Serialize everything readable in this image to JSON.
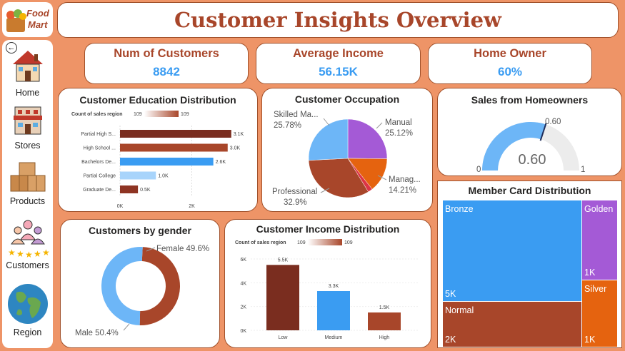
{
  "app": {
    "logo_line1": "Food",
    "logo_line2": "Mart",
    "title": "Customer Insights Overview"
  },
  "nav": {
    "back": "←",
    "items": [
      {
        "label": "Home",
        "icon": "home-icon"
      },
      {
        "label": "Stores",
        "icon": "store-icon"
      },
      {
        "label": "Products",
        "icon": "box-icon"
      },
      {
        "label": "Customers",
        "icon": "customers-icon"
      },
      {
        "label": "Region",
        "icon": "globe-icon"
      }
    ]
  },
  "kpis": [
    {
      "title": "Num of Customers",
      "value": "8842"
    },
    {
      "title": "Average Income",
      "value": "56.15K"
    },
    {
      "title": "Home Owner",
      "value": "60%"
    }
  ],
  "colors": {
    "accent": "#a8462a",
    "blue": "#3a9cf2",
    "purple": "#a45ad6",
    "orange": "#e5630f",
    "red": "#dc3545",
    "darkbrown": "#7a2d1f"
  },
  "chart_data": [
    {
      "id": "education",
      "type": "bar",
      "orientation": "horizontal",
      "title": "Customer Education Distribution",
      "legend": {
        "label": "Count of sales region",
        "min": "109",
        "max": "109"
      },
      "categories": [
        "Partial High S...",
        "High School ...",
        "Bachelors De...",
        "Partial College",
        "Graduate De..."
      ],
      "values": [
        3100,
        3000,
        2600,
        1000,
        500
      ],
      "value_labels": [
        "3.1K",
        "3.0K",
        "2.6K",
        "1.0K",
        "0.5K"
      ],
      "colors": [
        "#7a2d1f",
        "#a8462a",
        "#3a9cf2",
        "#a8d4fb",
        "#8e3423"
      ],
      "xticks": [
        "0K",
        "2K"
      ],
      "xlim": [
        0,
        4000
      ]
    },
    {
      "id": "occupation",
      "type": "pie",
      "title": "Customer Occupation",
      "slices": [
        {
          "label": "Manual",
          "pct_label": "25.12%",
          "value": 25.12,
          "color": "#a45ad6"
        },
        {
          "label": "Manag...",
          "pct_label": "14.21%",
          "value": 14.21,
          "color": "#e5630f"
        },
        {
          "label": "",
          "pct_label": "",
          "value": 1.89,
          "color": "#dc3545"
        },
        {
          "label": "Professional",
          "pct_label": "32.9%",
          "value": 32.9,
          "color": "#a8462a"
        },
        {
          "label": "Skilled Ma...",
          "pct_label": "25.78%",
          "value": 25.78,
          "color": "#6db6f7"
        }
      ]
    },
    {
      "id": "homeowner_gauge",
      "type": "gauge",
      "title": "Sales from Homeowners",
      "value": 0.6,
      "value_label": "0.60",
      "target_label": "0.60",
      "min_label": "0",
      "max_label": "1"
    },
    {
      "id": "gender",
      "type": "donut",
      "title": "Customers by gender",
      "slices": [
        {
          "label": "Female 49.6%",
          "value": 49.6,
          "color": "#a8462a"
        },
        {
          "label": "Male 50.4%",
          "value": 50.4,
          "color": "#6db6f7"
        }
      ]
    },
    {
      "id": "income",
      "type": "bar",
      "title": "Customer Income Distribution",
      "legend": {
        "label": "Count of sales region",
        "min": "109",
        "max": "109"
      },
      "categories": [
        "Low",
        "Medium",
        "High"
      ],
      "values": [
        5500,
        3300,
        1500
      ],
      "value_labels": [
        "5.5K",
        "3.3K",
        "1.5K"
      ],
      "colors": [
        "#7a2d1f",
        "#3a9cf2",
        "#a8462a"
      ],
      "yticks": [
        "6K",
        "4K",
        "2K",
        "0K"
      ],
      "ylim": [
        0,
        6000
      ]
    },
    {
      "id": "member_card",
      "type": "treemap",
      "title": "Member Card Distribution",
      "items": [
        {
          "name": "Bronze",
          "value_label": "5K",
          "color": "#3a9cf2"
        },
        {
          "name": "Golden",
          "value_label": "1K",
          "color": "#a45ad6"
        },
        {
          "name": "Silver",
          "value_label": "1K",
          "color": "#e5630f"
        },
        {
          "name": "Normal",
          "value_label": "2K",
          "color": "#a8462a"
        }
      ]
    }
  ]
}
